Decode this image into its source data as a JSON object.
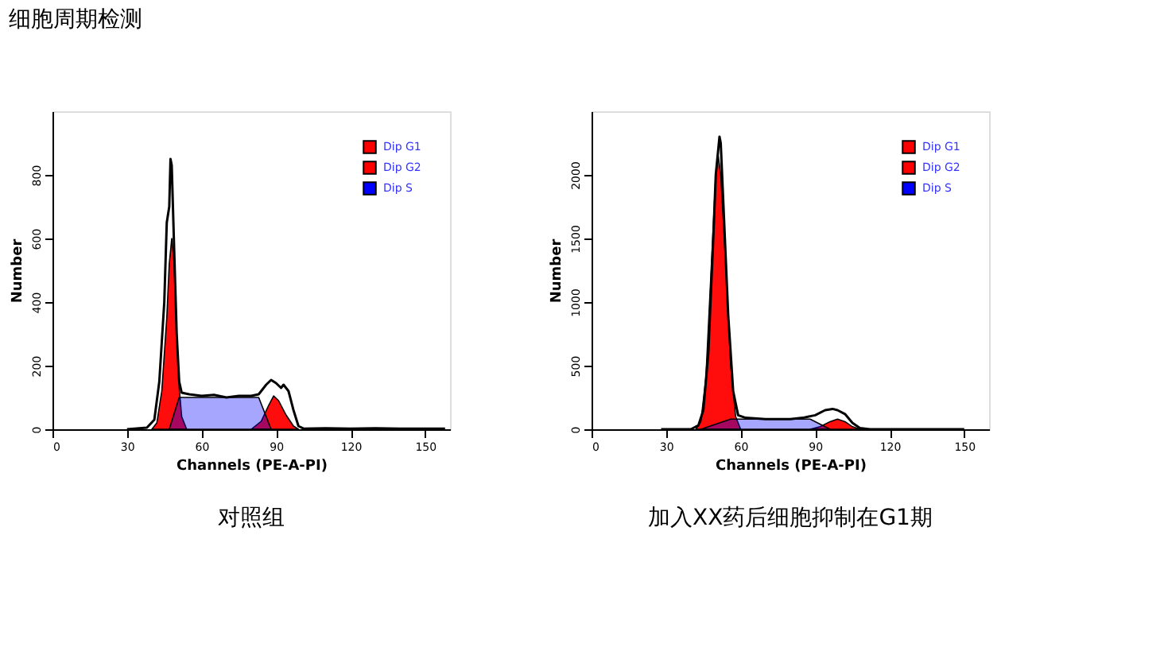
{
  "chart_data": [
    {
      "type": "area",
      "title": "细胞周期检测",
      "xlabel": "Channels (PE-A-PI)",
      "ylabel": "Number",
      "annotations": [
        "对照组"
      ],
      "xlim": [
        0,
        160
      ],
      "ylim": [
        0,
        1000
      ],
      "xticks": [
        0,
        30,
        60,
        90,
        120,
        150
      ],
      "yticks": [
        0,
        200,
        400,
        600,
        800
      ],
      "grid": false,
      "legend": "top right",
      "series": [
        {
          "name": "Dip G1",
          "color": "#ff0000",
          "x": [
            40,
            42,
            44,
            46,
            47,
            48,
            49,
            50,
            51,
            52,
            54
          ],
          "values": [
            0,
            20,
            120,
            350,
            520,
            600,
            520,
            300,
            130,
            40,
            0
          ]
        },
        {
          "name": "Dip G2",
          "color": "#ff0000",
          "x": [
            80,
            84,
            87,
            89,
            91,
            94,
            97,
            99
          ],
          "values": [
            0,
            25,
            75,
            105,
            90,
            45,
            10,
            0
          ]
        },
        {
          "name": "Dip S",
          "color": "#0000ff",
          "x": [
            47,
            51,
            83,
            88
          ],
          "values": [
            0,
            100,
            100,
            0
          ]
        },
        {
          "type": "line",
          "color": "#000000",
          "x": [
            30,
            38,
            41,
            43,
            45,
            46,
            47,
            47.5,
            48,
            49,
            50,
            51,
            52,
            55,
            60,
            65,
            70,
            75,
            80,
            83,
            86,
            88,
            90,
            92,
            93,
            95,
            97,
            99,
            101,
            110,
            120,
            130,
            140,
            158
          ],
          "values": [
            0,
            5,
            30,
            150,
            400,
            650,
            700,
            850,
            830,
            560,
            300,
            150,
            115,
            110,
            105,
            108,
            100,
            105,
            105,
            110,
            140,
            155,
            145,
            130,
            140,
            120,
            60,
            10,
            2,
            3,
            2,
            3,
            2,
            2
          ]
        }
      ]
    },
    {
      "type": "area",
      "xlabel": "Channels (PE-A-PI)",
      "ylabel": "Number",
      "annotations": [
        "加入XX药后细胞抑制在G1期"
      ],
      "xlim": [
        0,
        160
      ],
      "ylim": [
        0,
        2500
      ],
      "xticks": [
        0,
        30,
        60,
        90,
        120,
        150
      ],
      "yticks": [
        0,
        500,
        1000,
        1500,
        2000
      ],
      "grid": false,
      "legend": "top right",
      "series": [
        {
          "name": "Dip G1",
          "color": "#ff0000",
          "x": [
            42,
            44,
            46,
            48,
            50,
            51,
            52,
            54,
            56,
            58,
            60
          ],
          "values": [
            0,
            60,
            400,
            1200,
            2000,
            2150,
            2000,
            1300,
            500,
            100,
            0
          ]
        },
        {
          "name": "Dip G2",
          "color": "#ff0000",
          "x": [
            88,
            92,
            96,
            99,
            102,
            105,
            108
          ],
          "values": [
            0,
            20,
            60,
            80,
            60,
            20,
            0
          ]
        },
        {
          "name": "Dip S",
          "color": "#0000ff",
          "x": [
            44,
            56,
            88,
            96
          ],
          "values": [
            0,
            80,
            80,
            0
          ]
        },
        {
          "type": "line",
          "color": "#000000",
          "x": [
            28,
            40,
            43,
            45,
            47,
            49,
            50,
            51,
            51.5,
            52,
            53,
            55,
            57,
            59,
            62,
            70,
            80,
            85,
            90,
            94,
            97,
            99,
            102,
            105,
            108,
            112,
            130,
            150
          ],
          "values": [
            0,
            0,
            30,
            150,
            600,
            1500,
            2000,
            2200,
            2300,
            2250,
            1800,
            900,
            300,
            110,
            90,
            80,
            80,
            90,
            110,
            150,
            160,
            150,
            120,
            50,
            10,
            0,
            0,
            0
          ]
        }
      ]
    }
  ]
}
